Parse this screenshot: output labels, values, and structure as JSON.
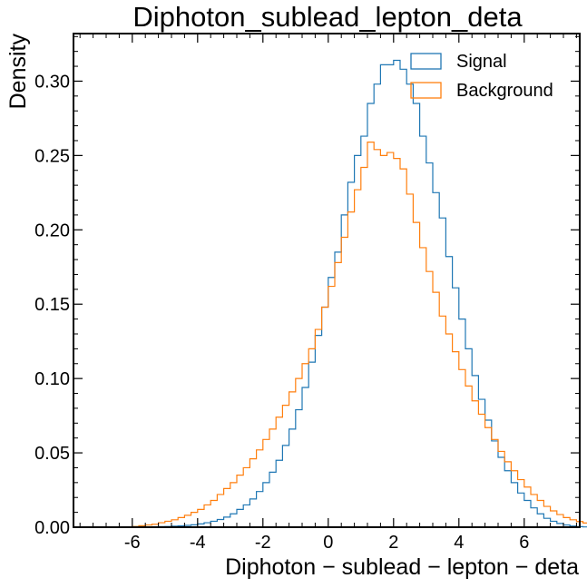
{
  "chart_data": {
    "type": "step-histogram",
    "title": "Diphoton_sublead_lepton_deta",
    "xlabel": "Diphoton − sublead − lepton − deta",
    "ylabel": "Density",
    "xlim": [
      -7.8,
      7.7
    ],
    "ylim": [
      0,
      0.332
    ],
    "xticks": [
      -6,
      -4,
      -2,
      0,
      2,
      4,
      6
    ],
    "xtick_labels": [
      "-6",
      "-4",
      "-2",
      "0",
      "2",
      "4",
      "6"
    ],
    "yticks": [
      0.0,
      0.05,
      0.1,
      0.15,
      0.2,
      0.25,
      0.3
    ],
    "ytick_labels": [
      "0.00",
      "0.05",
      "0.10",
      "0.15",
      "0.20",
      "0.25",
      "0.30"
    ],
    "grid": false,
    "legend_position": "top-right",
    "bin_edges_start": -6.0,
    "bin_width": 0.2,
    "series": [
      {
        "name": "Signal",
        "color": "#1f77b4",
        "values": [
          0.0,
          0.0001,
          0.0002,
          0.0003,
          0.0004,
          0.0005,
          0.0007,
          0.0009,
          0.0012,
          0.0016,
          0.0022,
          0.003,
          0.004,
          0.0052,
          0.0068,
          0.009,
          0.012,
          0.015,
          0.019,
          0.024,
          0.03,
          0.037,
          0.045,
          0.055,
          0.066,
          0.079,
          0.094,
          0.111,
          0.129,
          0.148,
          0.168,
          0.185,
          0.21,
          0.232,
          0.25,
          0.263,
          0.285,
          0.298,
          0.311,
          0.311,
          0.314,
          0.308,
          0.298,
          0.285,
          0.263,
          0.245,
          0.225,
          0.208,
          0.182,
          0.161,
          0.14,
          0.12,
          0.102,
          0.086,
          0.072,
          0.058,
          0.047,
          0.038,
          0.03,
          0.023,
          0.018,
          0.013,
          0.009,
          0.006,
          0.004,
          0.0025,
          0.0015,
          0.0008,
          0.0004,
          0.0002
        ]
      },
      {
        "name": "Background",
        "color": "#ff7f0e",
        "values": [
          0.0005,
          0.001,
          0.0015,
          0.002,
          0.003,
          0.004,
          0.005,
          0.0065,
          0.008,
          0.01,
          0.012,
          0.015,
          0.018,
          0.022,
          0.026,
          0.03,
          0.035,
          0.04,
          0.046,
          0.052,
          0.059,
          0.066,
          0.074,
          0.082,
          0.091,
          0.1,
          0.11,
          0.12,
          0.133,
          0.148,
          0.162,
          0.178,
          0.195,
          0.212,
          0.227,
          0.242,
          0.259,
          0.254,
          0.25,
          0.252,
          0.248,
          0.241,
          0.224,
          0.205,
          0.188,
          0.172,
          0.158,
          0.142,
          0.13,
          0.118,
          0.106,
          0.095,
          0.085,
          0.076,
          0.067,
          0.059,
          0.051,
          0.044,
          0.038,
          0.032,
          0.027,
          0.022,
          0.018,
          0.014,
          0.011,
          0.0085,
          0.0065,
          0.005,
          0.0038,
          0.0028,
          0.002,
          0.0014,
          0.0009,
          0.0006,
          0.0004
        ]
      }
    ]
  }
}
